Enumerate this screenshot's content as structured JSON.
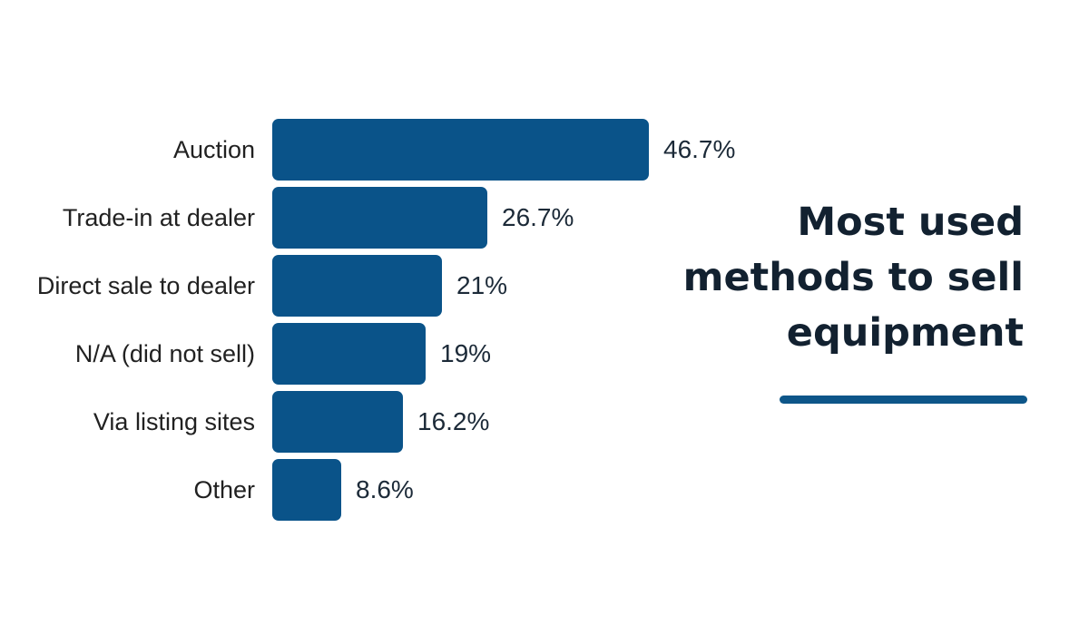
{
  "chart_data": {
    "type": "bar",
    "orientation": "horizontal",
    "title": "Most used methods to sell equipment",
    "title_lines": [
      "Most used",
      "methods to sell",
      "equipment"
    ],
    "categories": [
      "Auction",
      "Trade-in at dealer",
      "Direct sale to dealer",
      "N/A (did not sell)",
      "Via listing sites",
      "Other"
    ],
    "values": [
      46.7,
      26.7,
      21,
      19,
      16.2,
      8.6
    ],
    "value_labels": [
      "46.7%",
      "26.7%",
      "21%",
      "19%",
      "16.2%",
      "8.6%"
    ],
    "xlim": [
      0,
      46.7
    ],
    "grid": false,
    "legend": null,
    "colors": {
      "bar": "#0a5389",
      "underline": "#0d5689",
      "title": "#122130",
      "category_label": "#212121",
      "value_label": "#1c2a38",
      "background": "#ffffff"
    }
  }
}
